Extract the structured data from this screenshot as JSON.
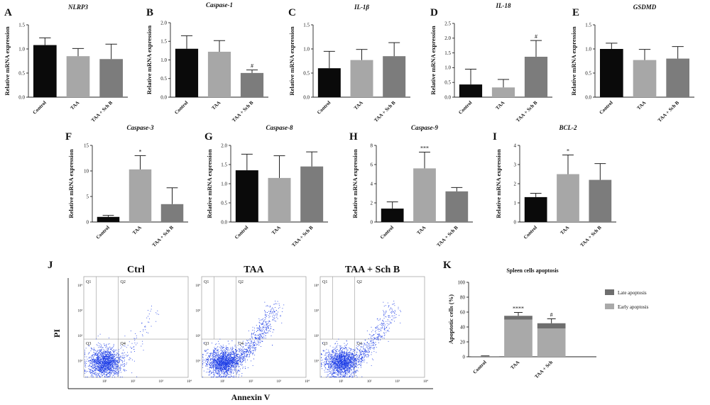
{
  "chart_data": [
    {
      "type": "bar",
      "panel": "A",
      "title": "NLRP3",
      "ylabel": "Relative mRNA expression",
      "categories": [
        "Control",
        "TAA",
        "TAA + Sch B"
      ],
      "values": [
        1.08,
        0.85,
        0.79
      ],
      "errors": [
        0.15,
        0.16,
        0.31
      ],
      "ylim": [
        0,
        1.5
      ],
      "yticks": [
        "0.0",
        "0.5",
        "1.0",
        "1.5"
      ],
      "significance": [
        "",
        "",
        ""
      ],
      "colors": [
        "#0a0a0a",
        "#a7a7a7",
        "#7c7c7c"
      ]
    },
    {
      "type": "bar",
      "panel": "B",
      "title": "Caspase-1",
      "ylabel": "Relative mRNA expression",
      "categories": [
        "Control",
        "TAA",
        "TAA + Sch B"
      ],
      "values": [
        1.3,
        1.22,
        0.65
      ],
      "errors": [
        0.35,
        0.3,
        0.08
      ],
      "ylim": [
        0,
        2.0
      ],
      "yticks": [
        "0.0",
        "0.5",
        "1.0",
        "1.5",
        "2.0"
      ],
      "significance": [
        "",
        "",
        "#"
      ],
      "colors": [
        "#0a0a0a",
        "#a7a7a7",
        "#7c7c7c"
      ]
    },
    {
      "type": "bar",
      "panel": "C",
      "title": "IL-1β",
      "ylabel": "Relative mRNA expression",
      "categories": [
        "Control",
        "TAA",
        "TAA + Sch B"
      ],
      "values": [
        0.6,
        0.77,
        0.85
      ],
      "errors": [
        0.35,
        0.22,
        0.28
      ],
      "ylim": [
        0,
        1.5
      ],
      "yticks": [
        "0.0",
        "0.5",
        "1.0",
        "1.5"
      ],
      "significance": [
        "",
        "",
        ""
      ],
      "colors": [
        "#0a0a0a",
        "#a7a7a7",
        "#7c7c7c"
      ]
    },
    {
      "type": "bar",
      "panel": "D",
      "title": "IL-18",
      "ylabel": "Relative mRNA expression",
      "categories": [
        "Control",
        "TAA",
        "TAA + Sch B"
      ],
      "values": [
        0.43,
        0.33,
        1.37
      ],
      "errors": [
        0.52,
        0.27,
        0.55
      ],
      "ylim": [
        0,
        2.5
      ],
      "yticks": [
        "0.0",
        "0.5",
        "1.0",
        "1.5",
        "2.0",
        "2.5"
      ],
      "significance": [
        "",
        "",
        "#"
      ],
      "colors": [
        "#0a0a0a",
        "#a7a7a7",
        "#7c7c7c"
      ]
    },
    {
      "type": "bar",
      "panel": "E",
      "title": "GSDMD",
      "ylabel": "Relative mRNA expression",
      "categories": [
        "Control",
        "TAA",
        "TAA + Sch B"
      ],
      "values": [
        1.0,
        0.77,
        0.8
      ],
      "errors": [
        0.12,
        0.22,
        0.25
      ],
      "ylim": [
        0,
        1.5
      ],
      "yticks": [
        "0.0",
        "0.5",
        "1.0",
        "1.5"
      ],
      "significance": [
        "",
        "",
        ""
      ],
      "colors": [
        "#0a0a0a",
        "#a7a7a7",
        "#7c7c7c"
      ]
    },
    {
      "type": "bar",
      "panel": "F",
      "title": "Caspase-3",
      "ylabel": "Relative mRNA expression",
      "categories": [
        "Control",
        "TAA",
        "TAA + Sch B"
      ],
      "values": [
        1.0,
        10.3,
        3.5
      ],
      "errors": [
        0.3,
        2.7,
        3.2
      ],
      "ylim": [
        0,
        15
      ],
      "yticks": [
        "0",
        "5",
        "10",
        "15"
      ],
      "significance": [
        "",
        "*",
        ""
      ],
      "colors": [
        "#0a0a0a",
        "#a7a7a7",
        "#7c7c7c"
      ]
    },
    {
      "type": "bar",
      "panel": "G",
      "title": "Caspase-8",
      "ylabel": "Relative mRNA expression",
      "categories": [
        "Control",
        "TAA",
        "TAA + Sch B"
      ],
      "values": [
        1.35,
        1.15,
        1.45
      ],
      "errors": [
        0.42,
        0.58,
        0.38
      ],
      "ylim": [
        0,
        2.0
      ],
      "yticks": [
        "0.0",
        "0.5",
        "1.0",
        "1.5",
        "2.0"
      ],
      "significance": [
        "",
        "",
        ""
      ],
      "colors": [
        "#0a0a0a",
        "#a7a7a7",
        "#7c7c7c"
      ]
    },
    {
      "type": "bar",
      "panel": "H",
      "title": "Caspase-9",
      "ylabel": "Relative mRNA expression",
      "categories": [
        "Control",
        "TAA",
        "TAA + Sch B"
      ],
      "values": [
        1.4,
        5.6,
        3.2
      ],
      "errors": [
        0.7,
        1.7,
        0.4
      ],
      "ylim": [
        0,
        8
      ],
      "yticks": [
        "0",
        "2",
        "4",
        "6",
        "8"
      ],
      "significance": [
        "",
        "***",
        ""
      ],
      "colors": [
        "#0a0a0a",
        "#a7a7a7",
        "#7c7c7c"
      ]
    },
    {
      "type": "bar",
      "panel": "I",
      "title": "BCL-2",
      "ylabel": "Relative mRNA expression",
      "categories": [
        "Control",
        "TAA",
        "TAA + Sch B"
      ],
      "values": [
        1.3,
        2.5,
        2.2
      ],
      "errors": [
        0.2,
        1.0,
        0.85
      ],
      "ylim": [
        0,
        4
      ],
      "yticks": [
        "0",
        "1",
        "2",
        "3",
        "4"
      ],
      "significance": [
        "",
        "*",
        ""
      ],
      "colors": [
        "#0a0a0a",
        "#a7a7a7",
        "#7c7c7c"
      ]
    },
    {
      "type": "bar",
      "panel": "K",
      "stacked": true,
      "title": "Spleen cells apoptosis",
      "ylabel": "Apoptotic cells (%)",
      "categories": [
        "Control",
        "TAA",
        "TAA + Sch"
      ],
      "series": [
        {
          "name": "Early apoptosis",
          "values": [
            0.5,
            50,
            38
          ],
          "color": "#a9a9a9"
        },
        {
          "name": "Late apoptosis",
          "values": [
            0.3,
            5,
            7
          ],
          "color": "#6e6e6e"
        }
      ],
      "errors": [
        0.4,
        4.5,
        6.0
      ],
      "ylim": [
        0,
        100
      ],
      "yticks": [
        "0",
        "20",
        "40",
        "60",
        "80",
        "100"
      ],
      "significance": [
        "",
        "****",
        "#"
      ]
    },
    {
      "type": "scatter",
      "panel": "J",
      "subtype": "flow-cytometry",
      "panels": [
        "Ctrl",
        "TAA",
        "TAA + Sch B"
      ],
      "xlabel": "Annexin V",
      "ylabel": "PI",
      "quadrants": [
        "Q1",
        "Q2",
        "Q3",
        "Q4"
      ],
      "ticks_x": [
        "10¹",
        "10²",
        "10³",
        "10⁴"
      ],
      "ticks_y": [
        "10¹",
        "10²",
        "10³",
        "10⁴"
      ],
      "event_color": "#1f3fe6"
    }
  ]
}
